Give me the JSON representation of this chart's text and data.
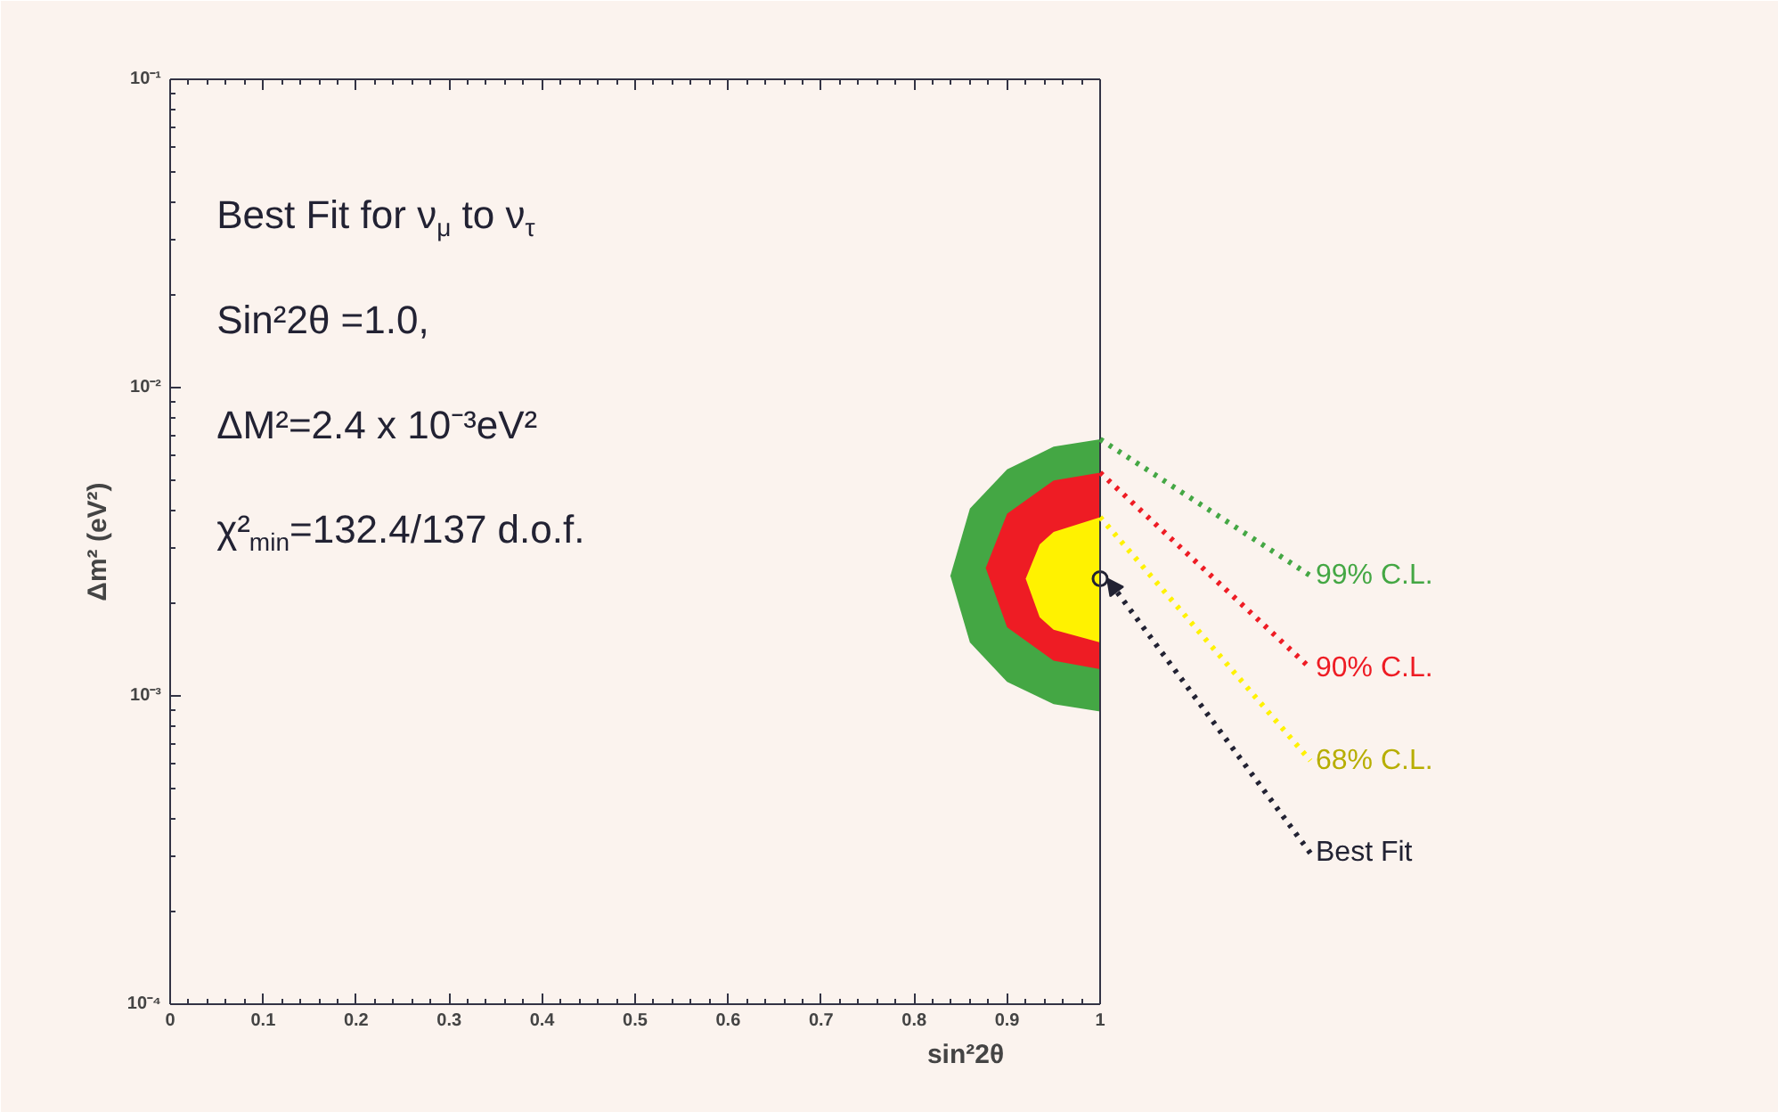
{
  "chart_data": {
    "type": "area",
    "xlabel": "sin²2θ",
    "ylabel": "Δm² (eV²)",
    "log": "y",
    "grid": false,
    "xlim": [
      0,
      1
    ],
    "ylim": [
      0.0001,
      0.1
    ],
    "xticks": [
      0,
      0.1,
      0.2,
      0.3,
      0.4,
      0.5,
      0.6,
      0.7,
      0.8,
      0.9,
      1
    ],
    "yticks": [
      {
        "value": 0.0001,
        "label": "10⁻⁴"
      },
      {
        "value": 0.001,
        "label": "10⁻³"
      },
      {
        "value": 0.01,
        "label": "10⁻²"
      },
      {
        "value": 0.1,
        "label": "10⁻¹"
      }
    ],
    "annotations": [
      "Best Fit for ν$_{μ}$ to ν$_{τ}$",
      "Sin²2θ =1.0,",
      "ΔM²=2.4 x 10⁻³eV²",
      "χ²$_{min}$=132.4/137 d.o.f."
    ],
    "series": [
      {
        "name": "99% C.L.",
        "color": "#44a744",
        "x": [
          1.0,
          0.95,
          0.9,
          0.86,
          0.839,
          0.86,
          0.9,
          0.95,
          1.0
        ],
        "values": [
          0.0068,
          0.00643,
          0.00543,
          0.00405,
          0.00245,
          0.00149,
          0.00111,
          0.00094,
          0.00089
        ]
      },
      {
        "name": "90% C.L.",
        "color": "#ee1c24",
        "x": [
          1.0,
          0.95,
          0.9,
          0.877,
          0.9,
          0.95,
          1.0
        ],
        "values": [
          0.0053,
          0.005,
          0.0039,
          0.0026,
          0.00167,
          0.0013,
          0.00122
        ]
      },
      {
        "name": "68% C.L.",
        "color": "#fff200",
        "x": [
          1.0,
          0.95,
          0.935,
          0.92,
          0.935,
          0.95,
          1.0
        ],
        "values": [
          0.0038,
          0.0034,
          0.0031,
          0.0024,
          0.0018,
          0.00164,
          0.00149
        ]
      },
      {
        "name": "Best Fit",
        "type": "scatter",
        "marker": "circle",
        "color": "#222233",
        "x": [
          1.0
        ],
        "values": [
          0.0024
        ]
      }
    ]
  }
}
